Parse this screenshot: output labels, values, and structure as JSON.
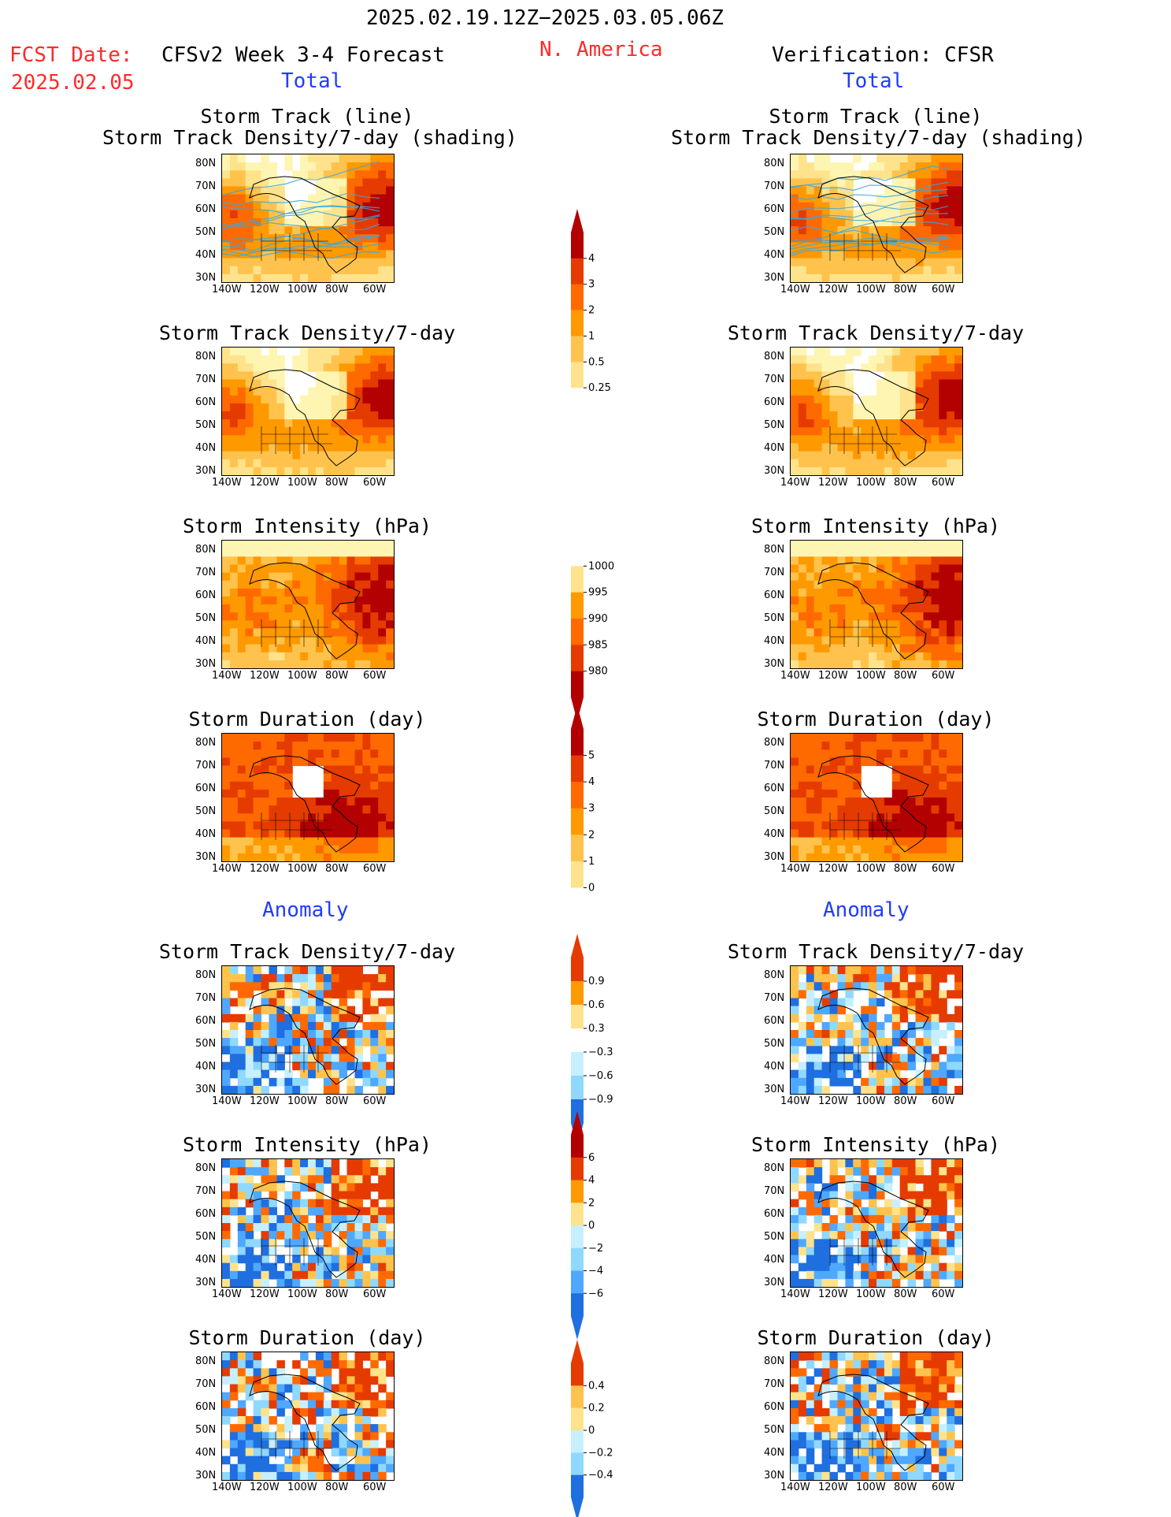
{
  "header": {
    "date_range": "2025.02.19.12Z−2025.03.05.06Z",
    "fcst_label": "FCST Date:",
    "fcst_date": "2025.02.05",
    "model_title": "CFSv2 Week 3-4 Forecast",
    "region": "N. America",
    "verification": "Verification: CFSR",
    "total_left": "Total",
    "total_right": "Total",
    "anomaly_left": "Anomaly",
    "anomaly_right": "Anomaly"
  },
  "panels": {
    "st_line_1": "Storm Track (line)",
    "st_line_2": "Storm Track Density/7-day (shading)",
    "density": "Storm Track Density/7-day",
    "intensity": "Storm Intensity (hPa)",
    "duration": "Storm Duration (day)"
  },
  "axes": {
    "lat": [
      "80N",
      "70N",
      "60N",
      "50N",
      "40N",
      "30N"
    ],
    "lon": [
      "140W",
      "120W",
      "100W",
      "80W",
      "60W"
    ]
  },
  "colorbars": {
    "density_total": [
      "4",
      "3",
      "2",
      "1",
      "0.5",
      "0.25"
    ],
    "intensity_total": [
      "1000",
      "995",
      "990",
      "985",
      "980"
    ],
    "duration_total": [
      "5",
      "4",
      "3",
      "2",
      "1",
      "0"
    ],
    "density_anom": [
      "0.9",
      "0.6",
      "0.3",
      "−0.3",
      "−0.6",
      "−0.9"
    ],
    "intensity_anom": [
      "6",
      "4",
      "2",
      "0",
      "−2",
      "−4",
      "−6"
    ],
    "duration_anom": [
      "0.4",
      "0.2",
      "0",
      "−0.2",
      "−0.4"
    ]
  },
  "colors": {
    "warm": [
      "#fff5b3",
      "#ffe38c",
      "#ffc34d",
      "#ff9900",
      "#ff6a00",
      "#e53b00",
      "#b30000"
    ],
    "cool": [
      "#c6f0ff",
      "#8fd8ff",
      "#4fa8ff",
      "#1f6fe0"
    ],
    "track_line": "#3aa7e0"
  }
}
